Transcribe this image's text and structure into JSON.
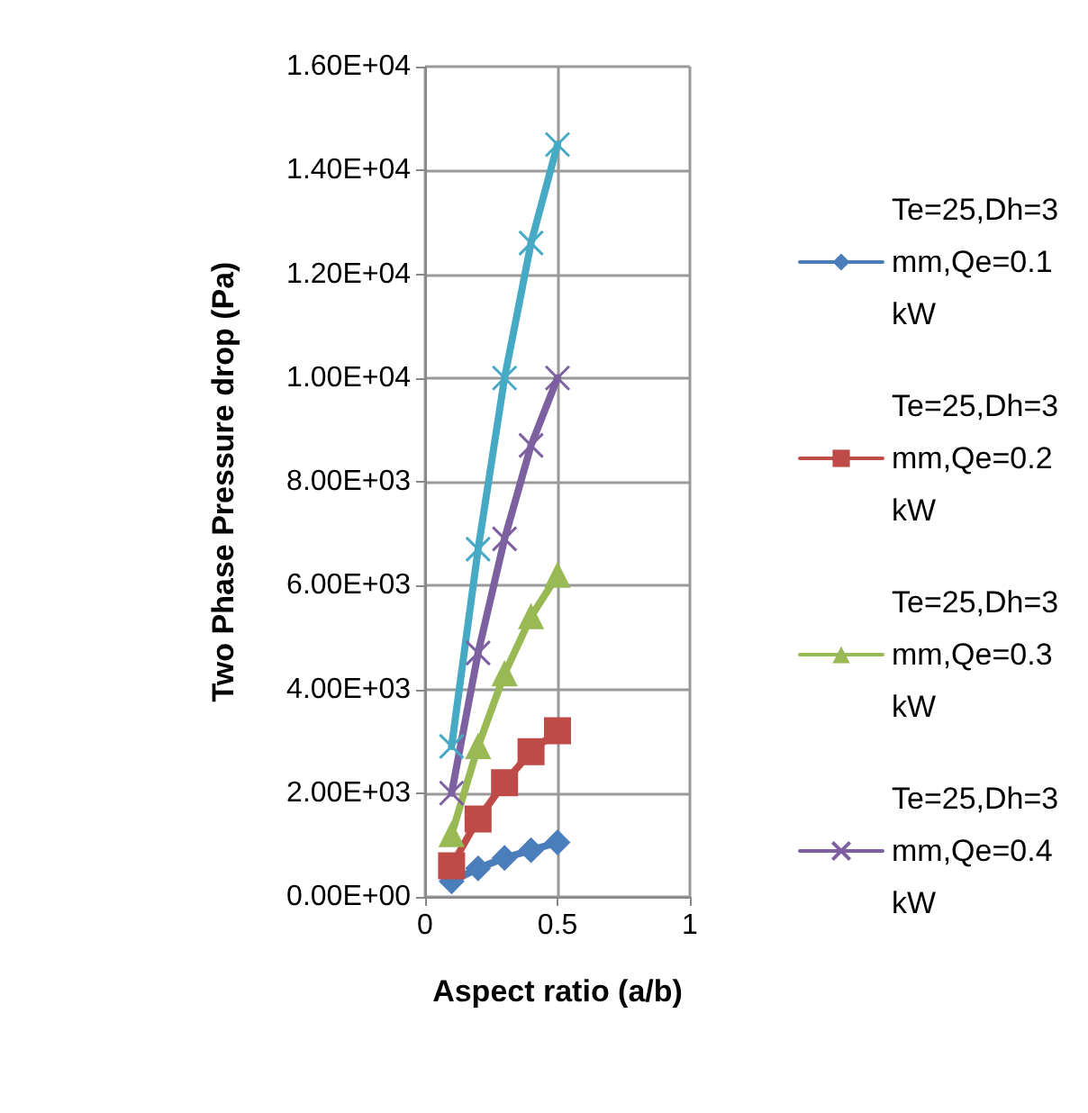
{
  "chart_data": {
    "type": "line",
    "xlabel": "Aspect ratio (a/b)",
    "ylabel": "Two Phase Pressure drop (Pa)",
    "x": [
      0.1,
      0.2,
      0.3,
      0.4,
      0.5
    ],
    "series": [
      {
        "name": "Te=25,Dh=3 mm,Qe=0.1 kW",
        "color": "#4a7ebb",
        "marker": "diamond",
        "values": [
          300,
          550,
          750,
          900,
          1050
        ]
      },
      {
        "name": "Te=25,Dh=3 mm,Qe=0.2 kW",
        "color": "#be4b48",
        "marker": "square",
        "values": [
          600,
          1500,
          2200,
          2800,
          3200
        ]
      },
      {
        "name": "Te=25,Dh=3 mm,Qe=0.3 kW",
        "color": "#98b954",
        "marker": "triangle",
        "values": [
          1200,
          2900,
          4300,
          5400,
          6200
        ]
      },
      {
        "name": "Te=25,Dh=3 mm,Qe=0.4 kW",
        "color": "#7d60a0",
        "marker": "cross",
        "values": [
          2000,
          4700,
          6900,
          8700,
          10000
        ]
      },
      {
        "color": "#46aac5",
        "marker": "cross",
        "values": [
          2900,
          6700,
          10000,
          12600,
          14500
        ]
      }
    ],
    "xlim": [
      0,
      1
    ],
    "xticks": [
      0,
      0.5,
      1
    ],
    "ylim": [
      0,
      16000
    ],
    "yticks": [
      {
        "value": 0,
        "label": "0.00E+00"
      },
      {
        "value": 2000,
        "label": "2.00E+03"
      },
      {
        "value": 4000,
        "label": "4.00E+03"
      },
      {
        "value": 6000,
        "label": "6.00E+03"
      },
      {
        "value": 8000,
        "label": "8.00E+03"
      },
      {
        "value": 10000,
        "label": "1.00E+04"
      },
      {
        "value": 12000,
        "label": "1.20E+04"
      },
      {
        "value": 14000,
        "label": "1.40E+04"
      },
      {
        "value": 16000,
        "label": "1.60E+04"
      }
    ],
    "grid": true,
    "legend": "right"
  }
}
